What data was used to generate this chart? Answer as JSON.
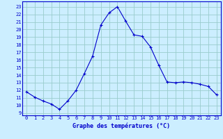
{
  "x": [
    0,
    1,
    2,
    3,
    4,
    5,
    6,
    7,
    8,
    9,
    10,
    11,
    12,
    13,
    14,
    15,
    16,
    17,
    18,
    19,
    20,
    21,
    22,
    23
  ],
  "y": [
    11.8,
    11.1,
    10.6,
    10.2,
    9.5,
    10.6,
    12.0,
    14.2,
    16.5,
    20.6,
    22.2,
    23.0,
    21.1,
    19.3,
    19.1,
    17.7,
    15.3,
    13.1,
    13.0,
    13.1,
    13.0,
    12.8,
    12.5,
    11.4
  ],
  "line_color": "#0000cc",
  "marker": "+",
  "marker_size": 3,
  "bg_color": "#cceeff",
  "grid_color": "#99cccc",
  "xlabel": "Graphe des températures (°C)",
  "xlabel_color": "#0000cc",
  "ylabel_ticks": [
    9,
    10,
    11,
    12,
    13,
    14,
    15,
    16,
    17,
    18,
    19,
    20,
    21,
    22,
    23
  ],
  "xlim": [
    -0.5,
    23.5
  ],
  "ylim": [
    8.7,
    23.7
  ],
  "tick_label_color": "#0000cc",
  "axis_color": "#0000cc",
  "tick_fontsize": 5.0,
  "xlabel_fontsize": 6.0
}
